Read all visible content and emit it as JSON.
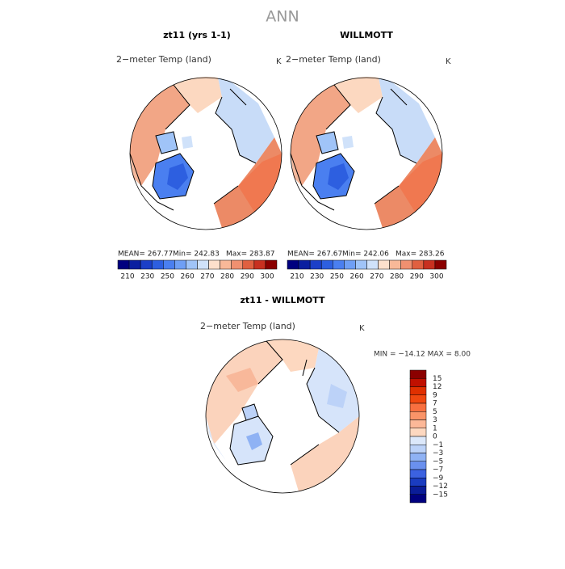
{
  "header": {
    "title": "ANN"
  },
  "panels": [
    {
      "title": "zt11 (yrs 1-1)",
      "field": "2−meter Temp (land)",
      "units": "K",
      "stats": [
        "MEAN= 267.77",
        "Min= 242.83",
        "Max= 283.87"
      ]
    },
    {
      "title": "WILLMOTT",
      "field": "2−meter Temp (land)",
      "units": "K",
      "stats": [
        "MEAN= 267.67",
        "Min= 242.06",
        "Max= 283.26"
      ]
    }
  ],
  "colorbar": {
    "labels": [
      "210",
      "230",
      "250",
      "260",
      "270",
      "280",
      "290",
      "300"
    ],
    "colors": [
      "#00007f",
      "#0a1fa0",
      "#1b3fc8",
      "#2d5fe0",
      "#4a7ff0",
      "#6f9ff5",
      "#a0c4f8",
      "#d0e2fa",
      "#fde0cc",
      "#f8b898",
      "#f09070",
      "#e06040",
      "#c83020",
      "#8b0000"
    ]
  },
  "difference": {
    "title": "zt11 - WILLMOTT",
    "field": "2−meter Temp (land)",
    "units": "K",
    "stats": "MIN = −14.12 MAX =    8.00",
    "colorbar": {
      "labels": [
        "15",
        "12",
        "9",
        "7",
        "5",
        "3",
        "1",
        "0",
        "−1",
        "−3",
        "−5",
        "−7",
        "−9",
        "−12",
        "−15"
      ],
      "colors": [
        "#8b0000",
        "#c01000",
        "#e03000",
        "#f04810",
        "#f87040",
        "#fa9468",
        "#fcb898",
        "#fdd8c0",
        "#dce8fa",
        "#bcd2f8",
        "#8fb2f4",
        "#6a90ee",
        "#3c62e0",
        "#1a3cc0",
        "#0a1c98",
        "#00007f"
      ]
    }
  }
}
